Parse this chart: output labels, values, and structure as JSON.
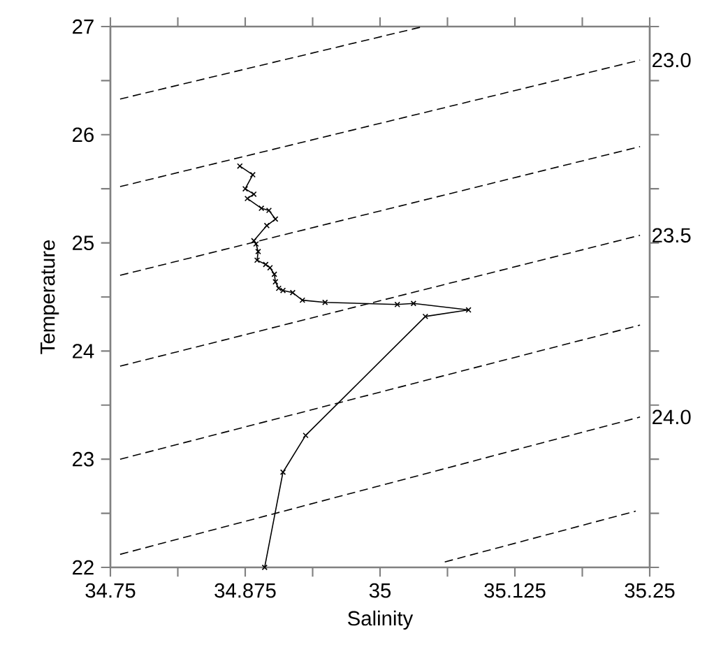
{
  "chart_data": {
    "type": "line",
    "xlabel": "Salinity",
    "ylabel": "Temperature",
    "xlim": [
      34.75,
      35.25
    ],
    "ylim": [
      22,
      27
    ],
    "xticks": [
      34.75,
      {
        "value": 34.8125,
        "label": null
      },
      34.875,
      {
        "value": 34.9375,
        "label": null
      },
      35,
      {
        "value": 35.0625,
        "label": null
      },
      35.125,
      {
        "value": 35.1875,
        "label": null
      },
      35.25
    ],
    "yticks": [
      22,
      {
        "value": 22.5,
        "label": null
      },
      23,
      {
        "value": 23.5,
        "label": null
      },
      24,
      {
        "value": 24.5,
        "label": null
      },
      25,
      {
        "value": 25.5,
        "label": null
      },
      26,
      {
        "value": 26.5,
        "label": null
      },
      27
    ],
    "grid": false,
    "series": [
      {
        "color": "#000000",
        "marker": "cross",
        "line_style": "solid",
        "x": [
          34.87,
          34.882,
          34.875,
          34.883,
          34.877,
          34.89,
          34.897,
          34.903,
          34.895,
          34.883,
          34.885,
          34.887,
          34.886,
          34.894,
          34.898,
          34.902,
          34.903,
          34.906,
          34.91,
          34.919,
          34.928,
          34.949,
          35.016,
          35.031,
          35.082,
          35.042,
          34.931,
          34.91,
          34.893
        ],
        "values": [
          25.71,
          25.63,
          25.5,
          25.45,
          25.41,
          25.32,
          25.3,
          25.22,
          25.16,
          25.02,
          24.99,
          24.92,
          24.84,
          24.8,
          24.77,
          24.71,
          24.64,
          24.58,
          24.56,
          24.54,
          24.47,
          24.45,
          24.43,
          24.44,
          24.38,
          24.32,
          23.22,
          22.88,
          22.0
        ]
      },
      {
        "color": "#000000",
        "marker": "none",
        "line_style": "dashed",
        "x": [
          34.759,
          35.04
        ],
        "values": [
          26.33,
          27.0
        ]
      },
      {
        "name": "23.0",
        "color": "#000000",
        "marker": "none",
        "line_style": "dashed",
        "x": [
          34.759,
          35.241
        ],
        "values": [
          25.52,
          26.69
        ]
      },
      {
        "color": "#000000",
        "marker": "none",
        "line_style": "dashed",
        "x": [
          34.759,
          35.241
        ],
        "values": [
          24.7,
          25.89
        ]
      },
      {
        "name": "23.5",
        "color": "#000000",
        "marker": "none",
        "line_style": "dashed",
        "x": [
          34.759,
          35.241
        ],
        "values": [
          23.86,
          25.07
        ]
      },
      {
        "color": "#000000",
        "marker": "none",
        "line_style": "dashed",
        "x": [
          34.759,
          35.241
        ],
        "values": [
          23.0,
          24.24
        ]
      },
      {
        "name": "24.0",
        "color": "#000000",
        "marker": "none",
        "line_style": "dashed",
        "x": [
          34.759,
          35.241
        ],
        "values": [
          22.12,
          23.39
        ]
      },
      {
        "color": "#000000",
        "marker": "none",
        "line_style": "dashed",
        "x": [
          35.06,
          35.237
        ],
        "values": [
          22.05,
          22.52
        ]
      }
    ]
  }
}
